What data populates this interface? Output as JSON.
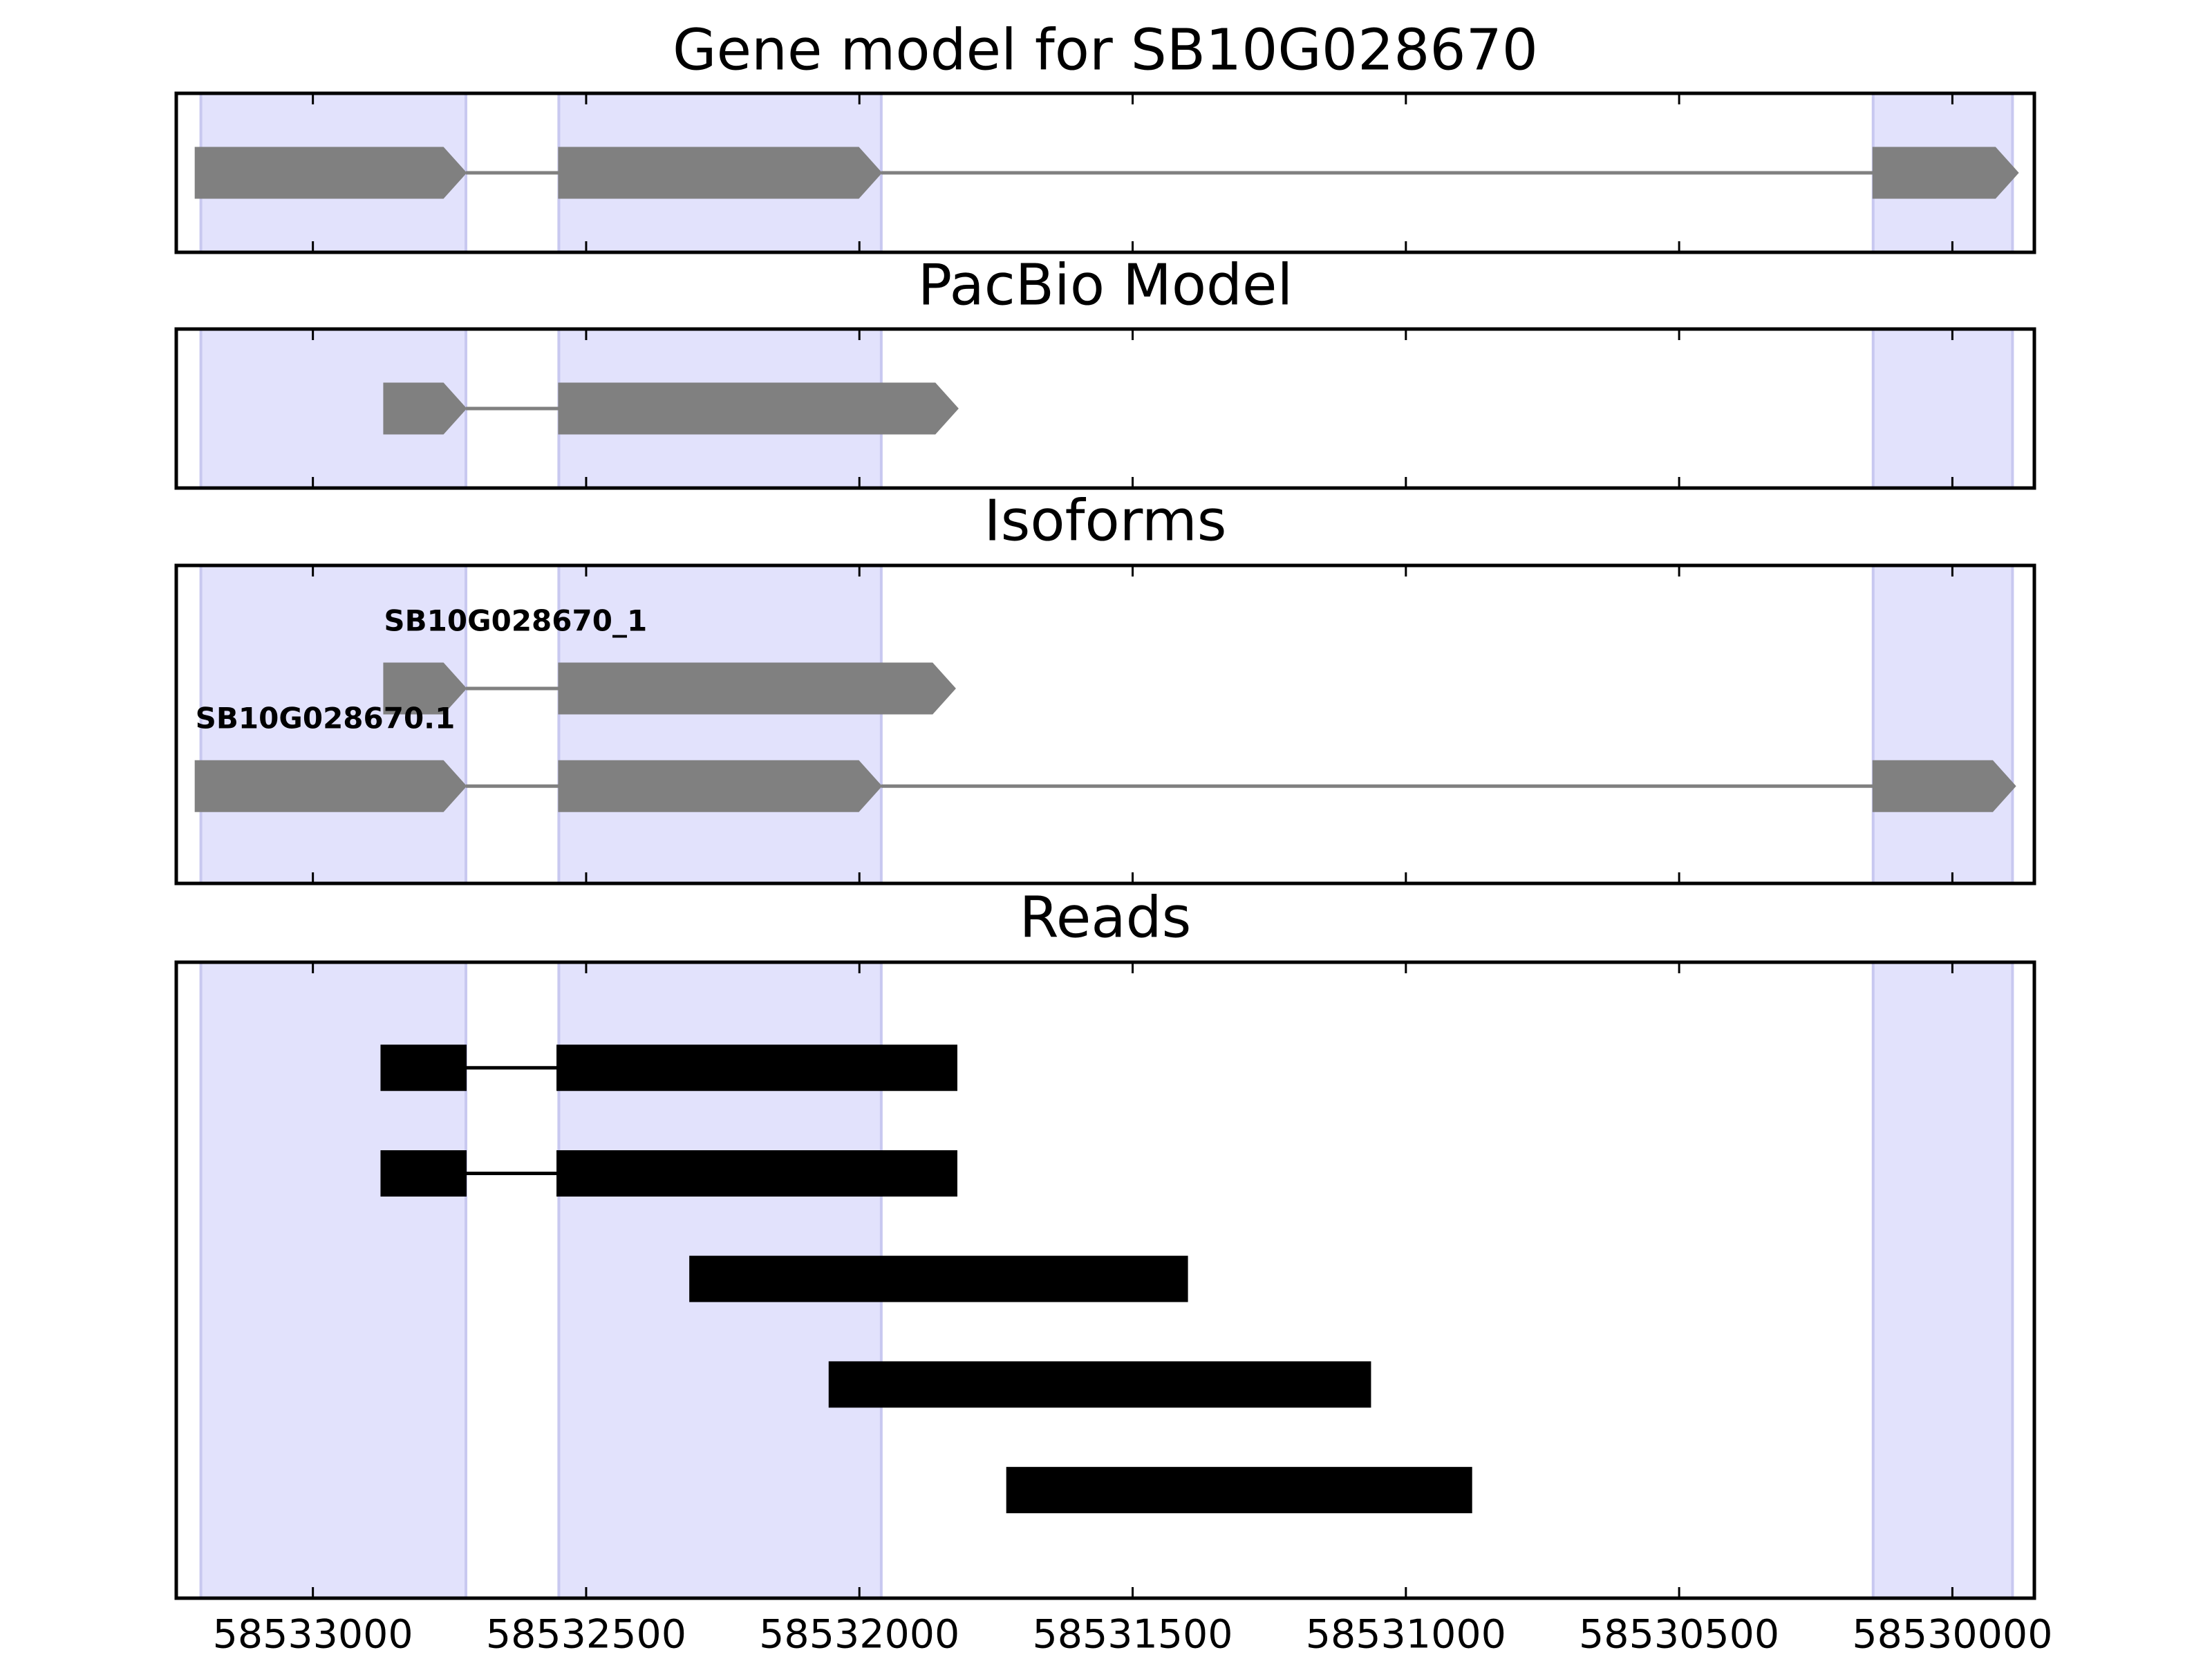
{
  "chart_data": [
    {
      "type": "gene",
      "title": "Gene model for SB10G028670",
      "xlim": [
        58533250,
        58529850
      ],
      "xticks": [
        58533000,
        58532500,
        58532000,
        58531500,
        58531000,
        58530500,
        58530000
      ],
      "highlight_color": "#e2e2fc",
      "highlights": [
        [
          58533205,
          58532720
        ],
        [
          58532550,
          58531960
        ],
        [
          58530145,
          58529890
        ]
      ],
      "color": "#808080",
      "transcripts": [
        {
          "exons": [
            [
              58533215,
              58532720
            ],
            [
              58532550,
              58531960
            ],
            [
              58530145,
              58529880
            ]
          ]
        }
      ]
    },
    {
      "type": "gene",
      "title": "PacBio Model",
      "xlim": [
        58533250,
        58529850
      ],
      "xticks": [
        58533000,
        58532500,
        58532000,
        58531500,
        58531000,
        58530500,
        58530000
      ],
      "highlight_color": "#e2e2fc",
      "highlights": [
        [
          58533205,
          58532720
        ],
        [
          58532550,
          58531960
        ],
        [
          58530145,
          58529890
        ]
      ],
      "color": "#808080",
      "transcripts": [
        {
          "exons": [
            [
              58532870,
              58532720
            ],
            [
              58532550,
              58531820
            ]
          ]
        }
      ]
    },
    {
      "type": "gene",
      "title": "Isoforms",
      "xlim": [
        58533250,
        58529850
      ],
      "xticks": [
        58533000,
        58532500,
        58532000,
        58531500,
        58531000,
        58530500,
        58530000
      ],
      "highlight_color": "#e2e2fc",
      "highlights": [
        [
          58533205,
          58532720
        ],
        [
          58532550,
          58531960
        ],
        [
          58530145,
          58529890
        ]
      ],
      "color": "#808080",
      "transcripts": [
        {
          "name": "SB10G028670_1",
          "exons": [
            [
              58532870,
              58532720
            ],
            [
              58532550,
              58531825
            ]
          ]
        },
        {
          "name": "SB10G028670.1",
          "exons": [
            [
              58533215,
              58532720
            ],
            [
              58532550,
              58531960
            ],
            [
              58530145,
              58529885
            ]
          ]
        }
      ]
    },
    {
      "type": "reads",
      "title": "Reads",
      "xlim": [
        58533250,
        58529850
      ],
      "xticks": [
        58533000,
        58532500,
        58532000,
        58531500,
        58531000,
        58530500,
        58530000
      ],
      "highlight_color": "#e2e2fc",
      "highlights": [
        [
          58533205,
          58532720
        ],
        [
          58532550,
          58531960
        ],
        [
          58530145,
          58529890
        ]
      ],
      "color": "#000000",
      "reads": [
        {
          "blocks": [
            [
              58532875,
              58532720
            ],
            [
              58532553,
              58531822
            ]
          ]
        },
        {
          "blocks": [
            [
              58532875,
              58532720
            ],
            [
              58532553,
              58531822
            ]
          ]
        },
        {
          "blocks": [
            [
              58532310,
              58531400
            ]
          ]
        },
        {
          "blocks": [
            [
              58532055,
              58531065
            ]
          ]
        },
        {
          "blocks": [
            [
              58531730,
              58530880
            ]
          ]
        }
      ]
    }
  ]
}
